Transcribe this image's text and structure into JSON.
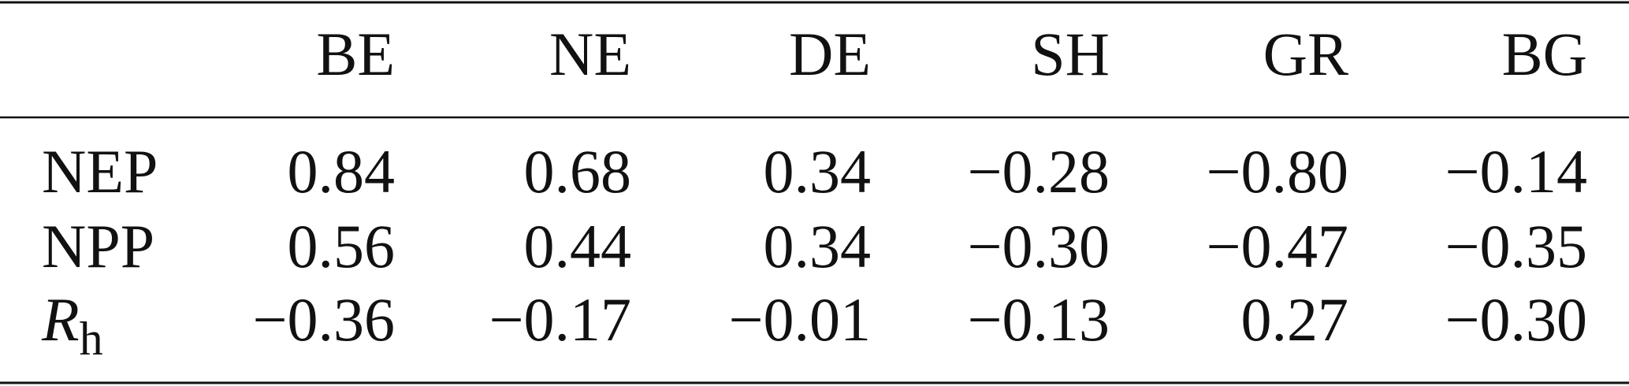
{
  "table": {
    "columns": [
      "BE",
      "NE",
      "DE",
      "SH",
      "GR",
      "BG"
    ],
    "rows": [
      {
        "label": "NEP",
        "cells": [
          "0.84",
          "0.68",
          "0.34",
          "−0.28",
          "−0.80",
          "−0.14"
        ]
      },
      {
        "label": "NPP",
        "cells": [
          "0.56",
          "0.44",
          "0.34",
          "−0.30",
          "−0.47",
          "−0.35"
        ]
      },
      {
        "label": "R",
        "label_sub": "h",
        "cells": [
          "−0.36",
          "−0.17",
          "−0.01",
          "−0.13",
          "0.27",
          "−0.30"
        ]
      }
    ]
  }
}
